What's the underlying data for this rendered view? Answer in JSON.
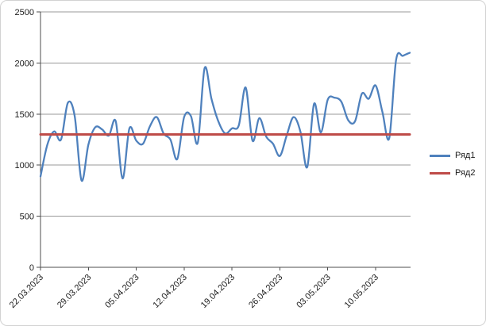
{
  "chart_data": {
    "type": "line",
    "title": "",
    "xlabel": "",
    "ylabel": "",
    "ylim": [
      0,
      2500
    ],
    "yticks": [
      0,
      500,
      1000,
      1500,
      2000,
      2500
    ],
    "xtick_every": 7,
    "grid": "horizontal",
    "legend_position": "right",
    "x": [
      "22.03.2023",
      "23.03.2023",
      "24.03.2023",
      "25.03.2023",
      "26.03.2023",
      "27.03.2023",
      "28.03.2023",
      "29.03.2023",
      "30.03.2023",
      "31.03.2023",
      "01.04.2023",
      "02.04.2023",
      "03.04.2023",
      "04.04.2023",
      "05.04.2023",
      "06.04.2023",
      "07.04.2023",
      "08.04.2023",
      "09.04.2023",
      "10.04.2023",
      "11.04.2023",
      "12.04.2023",
      "13.04.2023",
      "14.04.2023",
      "15.04.2023",
      "16.04.2023",
      "17.04.2023",
      "18.04.2023",
      "19.04.2023",
      "20.04.2023",
      "21.04.2023",
      "22.04.2023",
      "23.04.2023",
      "24.04.2023",
      "25.04.2023",
      "26.04.2023",
      "27.04.2023",
      "28.04.2023",
      "29.04.2023",
      "30.04.2023",
      "01.05.2023",
      "02.05.2023",
      "03.05.2023",
      "04.05.2023",
      "05.05.2023",
      "06.05.2023",
      "07.05.2023",
      "08.05.2023",
      "09.05.2023",
      "10.05.2023",
      "11.05.2023",
      "12.05.2023",
      "13.05.2023",
      "14.05.2023",
      "15.05.2023"
    ],
    "series": [
      {
        "name": "Ряд1",
        "color": "#4F81BD",
        "smooth": true,
        "values": [
          890,
          1200,
          1330,
          1250,
          1610,
          1480,
          850,
          1200,
          1370,
          1350,
          1290,
          1430,
          870,
          1360,
          1240,
          1210,
          1380,
          1470,
          1310,
          1250,
          1060,
          1470,
          1480,
          1220,
          1950,
          1650,
          1430,
          1310,
          1360,
          1390,
          1760,
          1240,
          1460,
          1280,
          1210,
          1090,
          1290,
          1470,
          1330,
          980,
          1600,
          1320,
          1640,
          1660,
          1620,
          1440,
          1430,
          1700,
          1650,
          1780,
          1520,
          1265,
          2030,
          2070,
          2100
        ]
      },
      {
        "name": "Ряд2",
        "color": "#BE4B48",
        "smooth": false,
        "constant": 1300
      }
    ]
  }
}
